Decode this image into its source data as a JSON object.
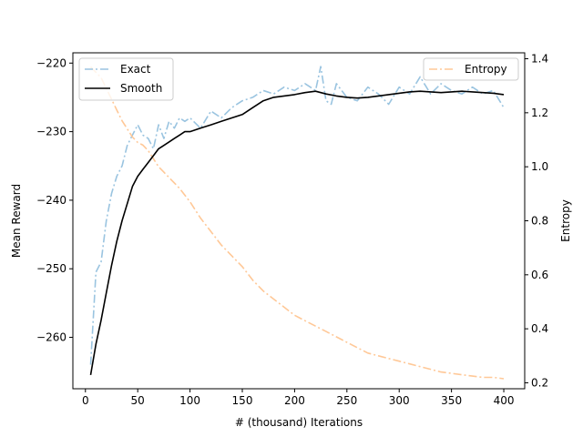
{
  "chart_data": {
    "type": "line",
    "title": "",
    "xlabel": "# (thousand) Iterations",
    "ylabel_left": "Mean Reward",
    "ylabel_right": "Entropy",
    "xlim": [
      -12,
      420
    ],
    "ylim_left": [
      -267.5,
      -218.5
    ],
    "ylim_right": [
      0.178,
      1.422
    ],
    "x_ticks": [
      0,
      50,
      100,
      150,
      200,
      250,
      300,
      350,
      400
    ],
    "y_left_ticks": [
      -260,
      -250,
      -240,
      -230,
      -220
    ],
    "y_right_ticks": [
      0.2,
      0.4,
      0.6,
      0.8,
      1.0,
      1.2,
      1.4
    ],
    "grid": false,
    "legend_left": {
      "placement": "top-left",
      "entries": [
        "Exact",
        "Smooth"
      ]
    },
    "legend_right": {
      "placement": "top-right",
      "entries": [
        "Entropy"
      ]
    },
    "colors": {
      "exact": "#9ac4e0",
      "smooth": "#000000",
      "entropy": "#ffc897"
    },
    "series": [
      {
        "name": "Exact",
        "axis": "left",
        "style": "dashdot",
        "x": [
          5,
          10,
          15,
          20,
          25,
          30,
          35,
          40,
          45,
          50,
          55,
          60,
          65,
          70,
          75,
          80,
          85,
          90,
          95,
          100,
          110,
          120,
          130,
          140,
          150,
          160,
          170,
          180,
          190,
          200,
          210,
          220,
          225,
          230,
          235,
          240,
          250,
          260,
          270,
          280,
          290,
          300,
          310,
          320,
          330,
          340,
          350,
          360,
          370,
          380,
          390,
          400
        ],
        "y": [
          -264,
          -250.5,
          -249,
          -243,
          -239,
          -236.5,
          -235,
          -232,
          -230.5,
          -229,
          -230.5,
          -231,
          -232.5,
          -229,
          -231,
          -228.5,
          -229.5,
          -228,
          -228.5,
          -228,
          -229.5,
          -227,
          -228,
          -226.5,
          -225.5,
          -225,
          -224,
          -224.5,
          -223.5,
          -224,
          -223,
          -224,
          -220.5,
          -225.5,
          -226,
          -223,
          -225,
          -225.5,
          -223.5,
          -224.5,
          -226,
          -223.5,
          -224.5,
          -222,
          -224.5,
          -223,
          -224,
          -224.5,
          -223.5,
          -224.5,
          -224,
          -226.5
        ]
      },
      {
        "name": "Smooth",
        "axis": "left",
        "style": "solid",
        "x": [
          5,
          10,
          15,
          20,
          25,
          30,
          35,
          40,
          45,
          50,
          55,
          60,
          65,
          70,
          75,
          80,
          85,
          90,
          95,
          100,
          110,
          120,
          130,
          140,
          150,
          160,
          170,
          180,
          190,
          200,
          210,
          220,
          230,
          240,
          250,
          260,
          270,
          280,
          290,
          300,
          310,
          320,
          330,
          340,
          350,
          360,
          370,
          380,
          390,
          400
        ],
        "y": [
          -265.5,
          -261,
          -257.5,
          -253.5,
          -249.5,
          -246,
          -243,
          -240.5,
          -238,
          -236.5,
          -235.5,
          -234.5,
          -233.5,
          -232.5,
          -232,
          -231.5,
          -231,
          -230.5,
          -230,
          -230,
          -229.5,
          -229,
          -228.5,
          -228,
          -227.5,
          -226.5,
          -225.5,
          -225,
          -224.8,
          -224.6,
          -224.3,
          -224.1,
          -224.5,
          -224.8,
          -225,
          -225.1,
          -225,
          -224.8,
          -224.6,
          -224.4,
          -224.2,
          -224.1,
          -224.2,
          -224.3,
          -224.2,
          -224.1,
          -224.2,
          -224.3,
          -224.4,
          -224.6
        ]
      },
      {
        "name": "Entropy",
        "axis": "right",
        "style": "dashdot",
        "x": [
          5,
          10,
          15,
          20,
          25,
          30,
          35,
          40,
          45,
          50,
          55,
          60,
          65,
          70,
          75,
          80,
          90,
          100,
          110,
          120,
          130,
          140,
          150,
          160,
          170,
          180,
          190,
          200,
          210,
          220,
          230,
          240,
          250,
          260,
          270,
          280,
          290,
          300,
          310,
          320,
          330,
          340,
          350,
          360,
          370,
          380,
          390,
          400
        ],
        "y": [
          1.37,
          1.35,
          1.33,
          1.29,
          1.25,
          1.21,
          1.17,
          1.14,
          1.11,
          1.09,
          1.08,
          1.06,
          1.03,
          1.0,
          0.98,
          0.96,
          0.92,
          0.87,
          0.81,
          0.76,
          0.71,
          0.67,
          0.63,
          0.58,
          0.54,
          0.51,
          0.48,
          0.45,
          0.43,
          0.41,
          0.39,
          0.37,
          0.35,
          0.33,
          0.31,
          0.3,
          0.29,
          0.28,
          0.27,
          0.26,
          0.25,
          0.24,
          0.235,
          0.23,
          0.225,
          0.22,
          0.22,
          0.215
        ]
      }
    ]
  }
}
